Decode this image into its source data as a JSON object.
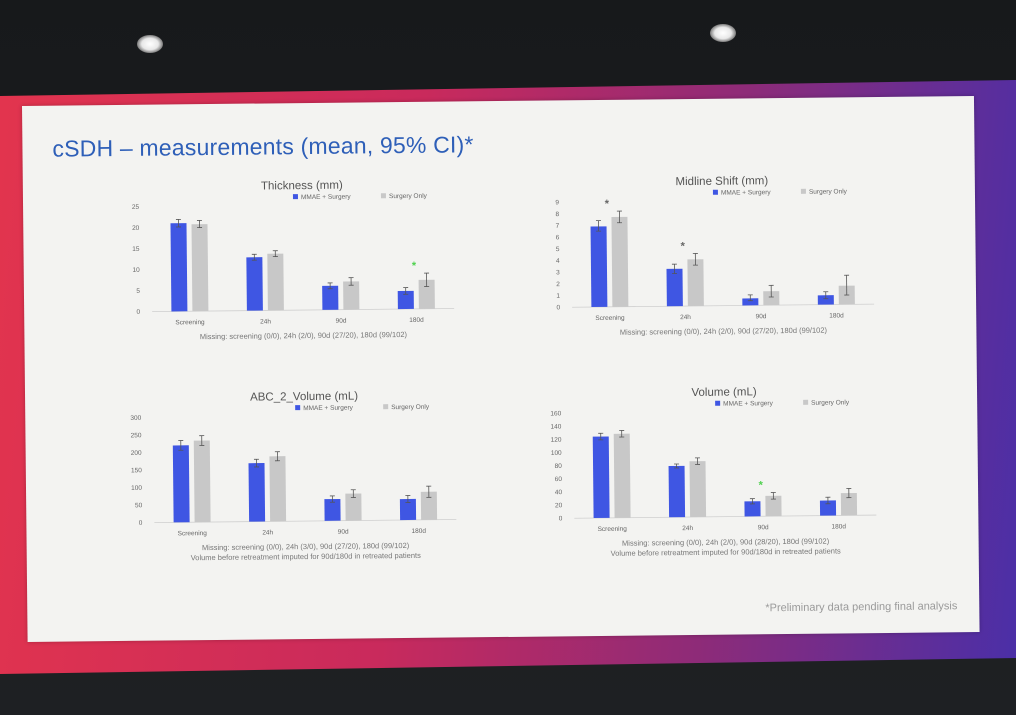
{
  "slide": {
    "title": "cSDH – measurements (mean, 95% CI)*",
    "footnote": "*Preliminary data pending final analysis"
  },
  "colors": {
    "series_1": "#3f56e3",
    "series_2": "#c8c8c8",
    "significance_dark": "#666666",
    "significance_green": "#4fd14f"
  },
  "chart_data": [
    {
      "type": "bar",
      "title": "Thickness (mm)",
      "categories": [
        "Screening",
        "24h",
        "90d",
        "180d"
      ],
      "ylim": [
        0,
        25
      ],
      "yticks": [
        "0",
        "5",
        "10",
        "15",
        "20",
        "25"
      ],
      "legend_position": "top-right",
      "grid": false,
      "series": [
        {
          "name": "MMAE + Surgery",
          "values": [
            21,
            12.7,
            5.7,
            4.3
          ],
          "ci": [
            [
              20.1,
              21.9
            ],
            [
              12,
              13.4
            ],
            [
              5,
              6.4
            ],
            [
              3.5,
              5.1
            ]
          ]
        },
        {
          "name": "Surgery Only",
          "values": [
            20.7,
            13.5,
            6.7,
            6.9
          ],
          "ci": [
            [
              19.9,
              21.6
            ],
            [
              12.8,
              14.2
            ],
            [
              5.8,
              7.6
            ],
            [
              5.3,
              8.5
            ]
          ]
        }
      ],
      "markers": [
        {
          "category": "180d",
          "symbol": "*",
          "color": "green"
        }
      ],
      "notes": [
        "Missing: screening (0/0), 24h (2/0), 90d (27/20), 180d (99/102)"
      ]
    },
    {
      "type": "bar",
      "title": "Midline Shift (mm)",
      "categories": [
        "Screening",
        "24h",
        "90d",
        "180d"
      ],
      "ylim": [
        0,
        9
      ],
      "yticks": [
        "0",
        "1",
        "2",
        "3",
        "4",
        "5",
        "6",
        "7",
        "8",
        "9"
      ],
      "legend_position": "top-right",
      "grid": false,
      "series": [
        {
          "name": "MMAE + Surgery",
          "values": [
            6.9,
            3.2,
            0.6,
            0.8
          ],
          "ci": [
            [
              6.5,
              7.4
            ],
            [
              2.8,
              3.6
            ],
            [
              0.4,
              0.9
            ],
            [
              0.5,
              1.1
            ]
          ]
        },
        {
          "name": "Surgery Only",
          "values": [
            7.7,
            4,
            1.2,
            1.6
          ],
          "ci": [
            [
              7.2,
              8.2
            ],
            [
              3.5,
              4.5
            ],
            [
              0.7,
              1.7
            ],
            [
              0.8,
              2.5
            ]
          ]
        }
      ],
      "markers": [
        {
          "category": "Screening",
          "symbol": "*",
          "color": "dark"
        },
        {
          "category": "24h",
          "symbol": "*",
          "color": "dark"
        }
      ],
      "notes": [
        "Missing: screening (0/0), 24h (2/0), 90d (27/20), 180d (99/102)"
      ]
    },
    {
      "type": "bar",
      "title": "ABC_2_Volume (mL)",
      "categories": [
        "Screening",
        "24h",
        "90d",
        "180d"
      ],
      "ylim": [
        0,
        300
      ],
      "yticks": [
        "0",
        "50",
        "100",
        "150",
        "200",
        "250",
        "300"
      ],
      "legend_position": "top-right",
      "grid": false,
      "series": [
        {
          "name": "MMAE + Surgery",
          "values": [
            220,
            167,
            62,
            60
          ],
          "ci": [
            [
              206,
              234
            ],
            [
              156,
              178
            ],
            [
              53,
              71
            ],
            [
              50,
              70
            ]
          ]
        },
        {
          "name": "Surgery Only",
          "values": [
            233,
            186,
            77,
            80
          ],
          "ci": [
            [
              219,
              247
            ],
            [
              173,
              199
            ],
            [
              66,
              88
            ],
            [
              64,
              96
            ]
          ]
        }
      ],
      "markers": [],
      "notes": [
        "Missing: screening (0/0), 24h (3/0), 90d (27/20), 180d (99/102)",
        "Volume before retreatment imputed for 90d/180d in retreated patients"
      ]
    },
    {
      "type": "bar",
      "title": "Volume (mL)",
      "categories": [
        "Screening",
        "24h",
        "90d",
        "180d"
      ],
      "ylim": [
        0,
        160
      ],
      "yticks": [
        "0",
        "20",
        "40",
        "60",
        "80",
        "100",
        "120",
        "140",
        "160"
      ],
      "legend_position": "top-right",
      "grid": false,
      "series": [
        {
          "name": "MMAE + Surgery",
          "values": [
            124,
            78,
            23,
            23
          ],
          "ci": [
            [
              119,
              129
            ],
            [
              75,
              81
            ],
            [
              19,
              27
            ],
            [
              18,
              28
            ]
          ]
        },
        {
          "name": "Surgery Only",
          "values": [
            128,
            85,
            31,
            34
          ],
          "ci": [
            [
              123,
              133
            ],
            [
              80,
              90
            ],
            [
              26,
              36
            ],
            [
              27,
              41
            ]
          ]
        }
      ],
      "markers": [
        {
          "category": "90d",
          "symbol": "*",
          "color": "green"
        }
      ],
      "notes": [
        "Missing: screening (0/0), 24h (2/0), 90d (28/20), 180d (99/102)",
        "Volume before retreatment imputed for 90d/180d in retreated patients"
      ]
    }
  ]
}
